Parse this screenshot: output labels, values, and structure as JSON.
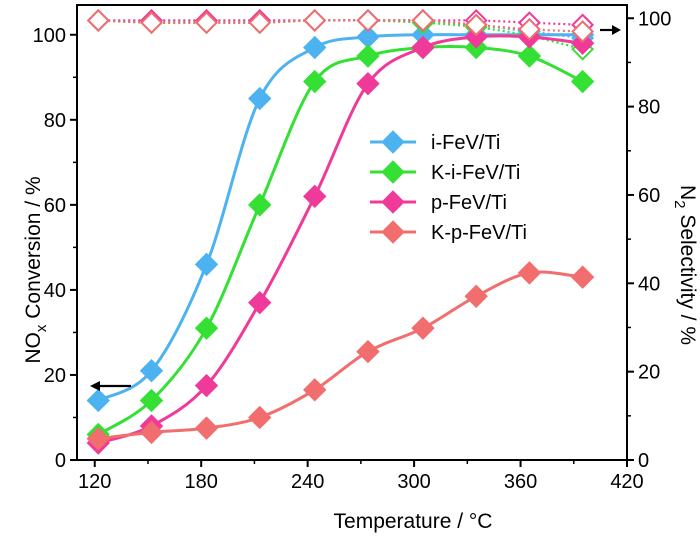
{
  "chart_data": {
    "type": "line",
    "title": "",
    "xlabel": "Temperature / °C",
    "ylabel": {
      "pre": "NO",
      "sub": "x",
      "post": " Conversion / %"
    },
    "y2label": {
      "pre": "N",
      "sub": "2",
      "post": " Selectivity / %"
    },
    "xlim": [
      110,
      420
    ],
    "ylim": [
      0,
      107
    ],
    "y2lim": [
      0,
      103
    ],
    "x_ticks": [
      120,
      180,
      240,
      300,
      360,
      420
    ],
    "y_ticks": [
      0,
      20,
      40,
      60,
      80,
      100
    ],
    "y2_ticks": [
      0,
      20,
      40,
      60,
      80,
      100
    ],
    "legend_position": "right-middle",
    "axis_indicators": {
      "left_arrow": "points to left axis (conversion)",
      "right_arrow": "points to right axis (selectivity)"
    },
    "x": [
      122,
      152,
      183,
      213,
      244,
      274,
      305,
      335,
      365,
      395
    ],
    "series": [
      {
        "name": "i-FeV/Ti",
        "color": "#4db3f0",
        "conversion": [
          14,
          21,
          46,
          85,
          97,
          99.5,
          100,
          100,
          100,
          100
        ],
        "selectivity": [
          99.5,
          99.5,
          99.5,
          99.5,
          99.5,
          99.5,
          99.5,
          98.5,
          97,
          95.5
        ]
      },
      {
        "name": "K-i-FeV/Ti",
        "color": "#33e033",
        "conversion": [
          6,
          14,
          31,
          60,
          89,
          95,
          97,
          97,
          95,
          89
        ],
        "selectivity": [
          99.5,
          99,
          99,
          99,
          99.5,
          99.5,
          99,
          98,
          96,
          93
        ]
      },
      {
        "name": "p-FeV/Ti",
        "color": "#f03a9a",
        "conversion": [
          4,
          8,
          17.5,
          37,
          62,
          88.5,
          97,
          99.5,
          99.5,
          98
        ],
        "selectivity": [
          99.5,
          99.5,
          99.5,
          99.5,
          99.5,
          99.5,
          99.5,
          99.5,
          99,
          98.5
        ]
      },
      {
        "name": "K-p-FeV/Ti",
        "color": "#f26d6d",
        "conversion": [
          5,
          6.5,
          7.5,
          10,
          16.5,
          25.5,
          31,
          38.5,
          44,
          43
        ],
        "selectivity": [
          99.5,
          99,
          99,
          99,
          99.5,
          99.5,
          99.5,
          98.5,
          97.5,
          97
        ]
      }
    ]
  }
}
